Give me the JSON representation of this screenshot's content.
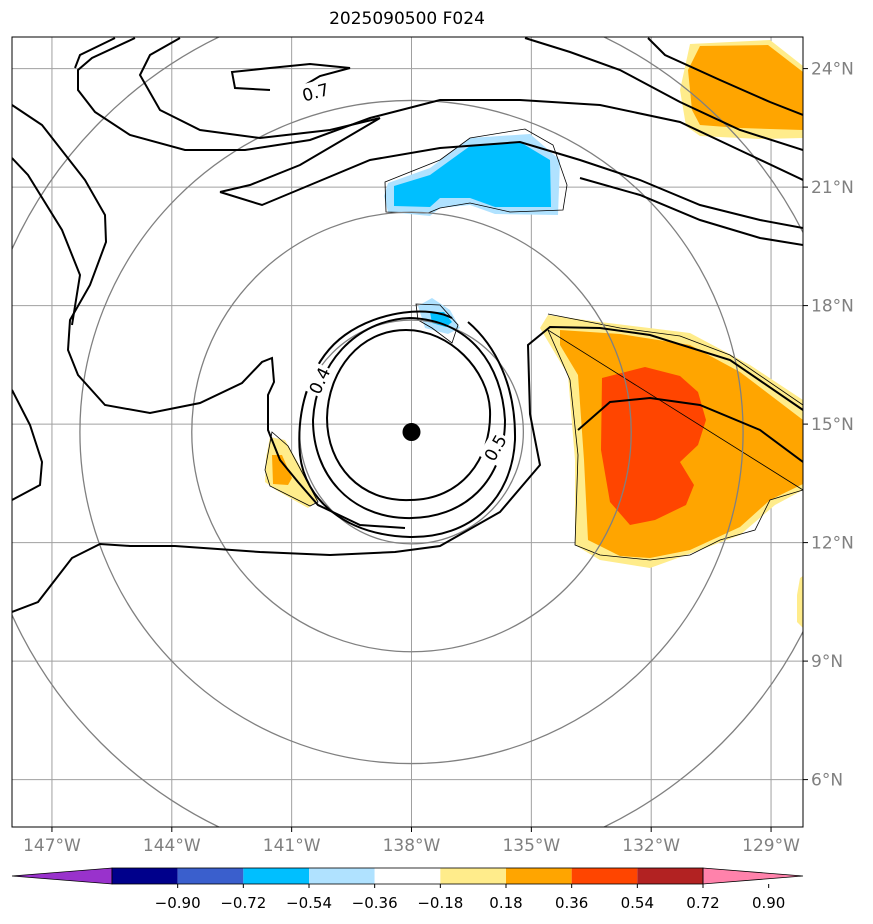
{
  "title": "2025090500 F024",
  "map": {
    "lon_range": [
      -148,
      -128.2
    ],
    "lat_range": [
      4.8,
      24.8
    ],
    "lon_ticks": [
      {
        "lon": -147,
        "label": "147°W"
      },
      {
        "lon": -144,
        "label": "144°W"
      },
      {
        "lon": -141,
        "label": "141°W"
      },
      {
        "lon": -138,
        "label": "138°W"
      },
      {
        "lon": -135,
        "label": "135°W"
      },
      {
        "lon": -132,
        "label": "132°W"
      },
      {
        "lon": -129,
        "label": "129°W"
      }
    ],
    "lat_ticks": [
      {
        "lat": 24,
        "label": "24°N"
      },
      {
        "lat": 21,
        "label": "21°N"
      },
      {
        "lat": 18,
        "label": "18°N"
      },
      {
        "lat": 15,
        "label": "15°N"
      },
      {
        "lat": 12,
        "label": "12°N"
      },
      {
        "lat": 9,
        "label": "9°N"
      },
      {
        "lat": 6,
        "label": "6°N"
      }
    ],
    "storm_center": {
      "lon": -138.0,
      "lat": 14.8
    },
    "range_ring_radii_deg": [
      2.8,
      5.5,
      8.3,
      11.0
    ],
    "contour_labels": [
      {
        "text": "0.7",
        "lon": -140.4,
        "lat": 23.4
      },
      {
        "text": "0.4",
        "lon": -140.3,
        "lat": 16.1
      },
      {
        "text": "0.5",
        "lon": -135.9,
        "lat": 14.4
      }
    ]
  },
  "colorbar": {
    "colors": [
      "#9932cc",
      "#00008b",
      "#3a5fcd",
      "#00bfff",
      "#b0e2ff",
      "#ffffff",
      "#ffec8b",
      "#ffa500",
      "#ff4500",
      "#b22222",
      "#ff82ab"
    ],
    "tick_labels": [
      "−0.90",
      "−0.72",
      "−0.54",
      "−0.36",
      "−0.18",
      "0.18",
      "0.36",
      "0.54",
      "0.72",
      "0.90"
    ]
  },
  "colors": {
    "grid": "#a0a0a0",
    "range_ring": "#808080",
    "tick_label": "#808080",
    "contour": "#000000",
    "center_marker": "#000000"
  }
}
